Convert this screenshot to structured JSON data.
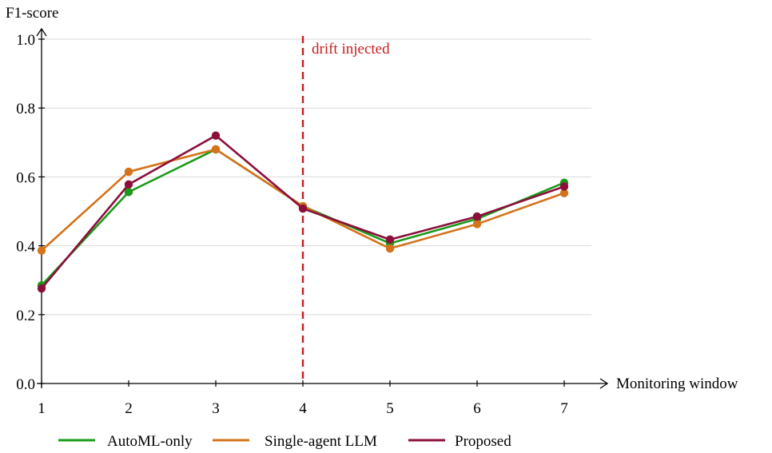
{
  "chart_data": {
    "type": "line",
    "title": "",
    "xlabel": "Monitoring window",
    "ylabel": "F1-score",
    "x": [
      1,
      2,
      3,
      4,
      5,
      6,
      7
    ],
    "xlim": [
      1,
      7
    ],
    "ylim": [
      0,
      1
    ],
    "yticks": [
      0,
      0.2,
      0.4,
      0.6,
      0.8,
      1
    ],
    "ytick_labels": [
      "0.0",
      "0.2",
      "0.4",
      "0.6",
      "0.8",
      "1.0"
    ],
    "xtick_labels": [
      "1",
      "2",
      "3",
      "4",
      "5",
      "6",
      "7"
    ],
    "grid": "horizontal",
    "legend_position": "bottom",
    "series": [
      {
        "name": "AutoML-only",
        "color": "#1a9a1a",
        "values": [
          0.285,
          0.556,
          0.68,
          0.515,
          0.407,
          0.478,
          0.583
        ]
      },
      {
        "name": "Single-agent LLM",
        "color": "#d4731b",
        "values": [
          0.386,
          0.615,
          0.68,
          0.515,
          0.392,
          0.463,
          0.553
        ]
      },
      {
        "name": "Proposed",
        "color": "#8b0f3a",
        "values": [
          0.276,
          0.578,
          0.72,
          0.508,
          0.418,
          0.485,
          0.572
        ]
      }
    ],
    "annotations": [
      {
        "type": "vline",
        "x": 4,
        "label": "drift injected",
        "color": "#c81e1e"
      }
    ]
  }
}
